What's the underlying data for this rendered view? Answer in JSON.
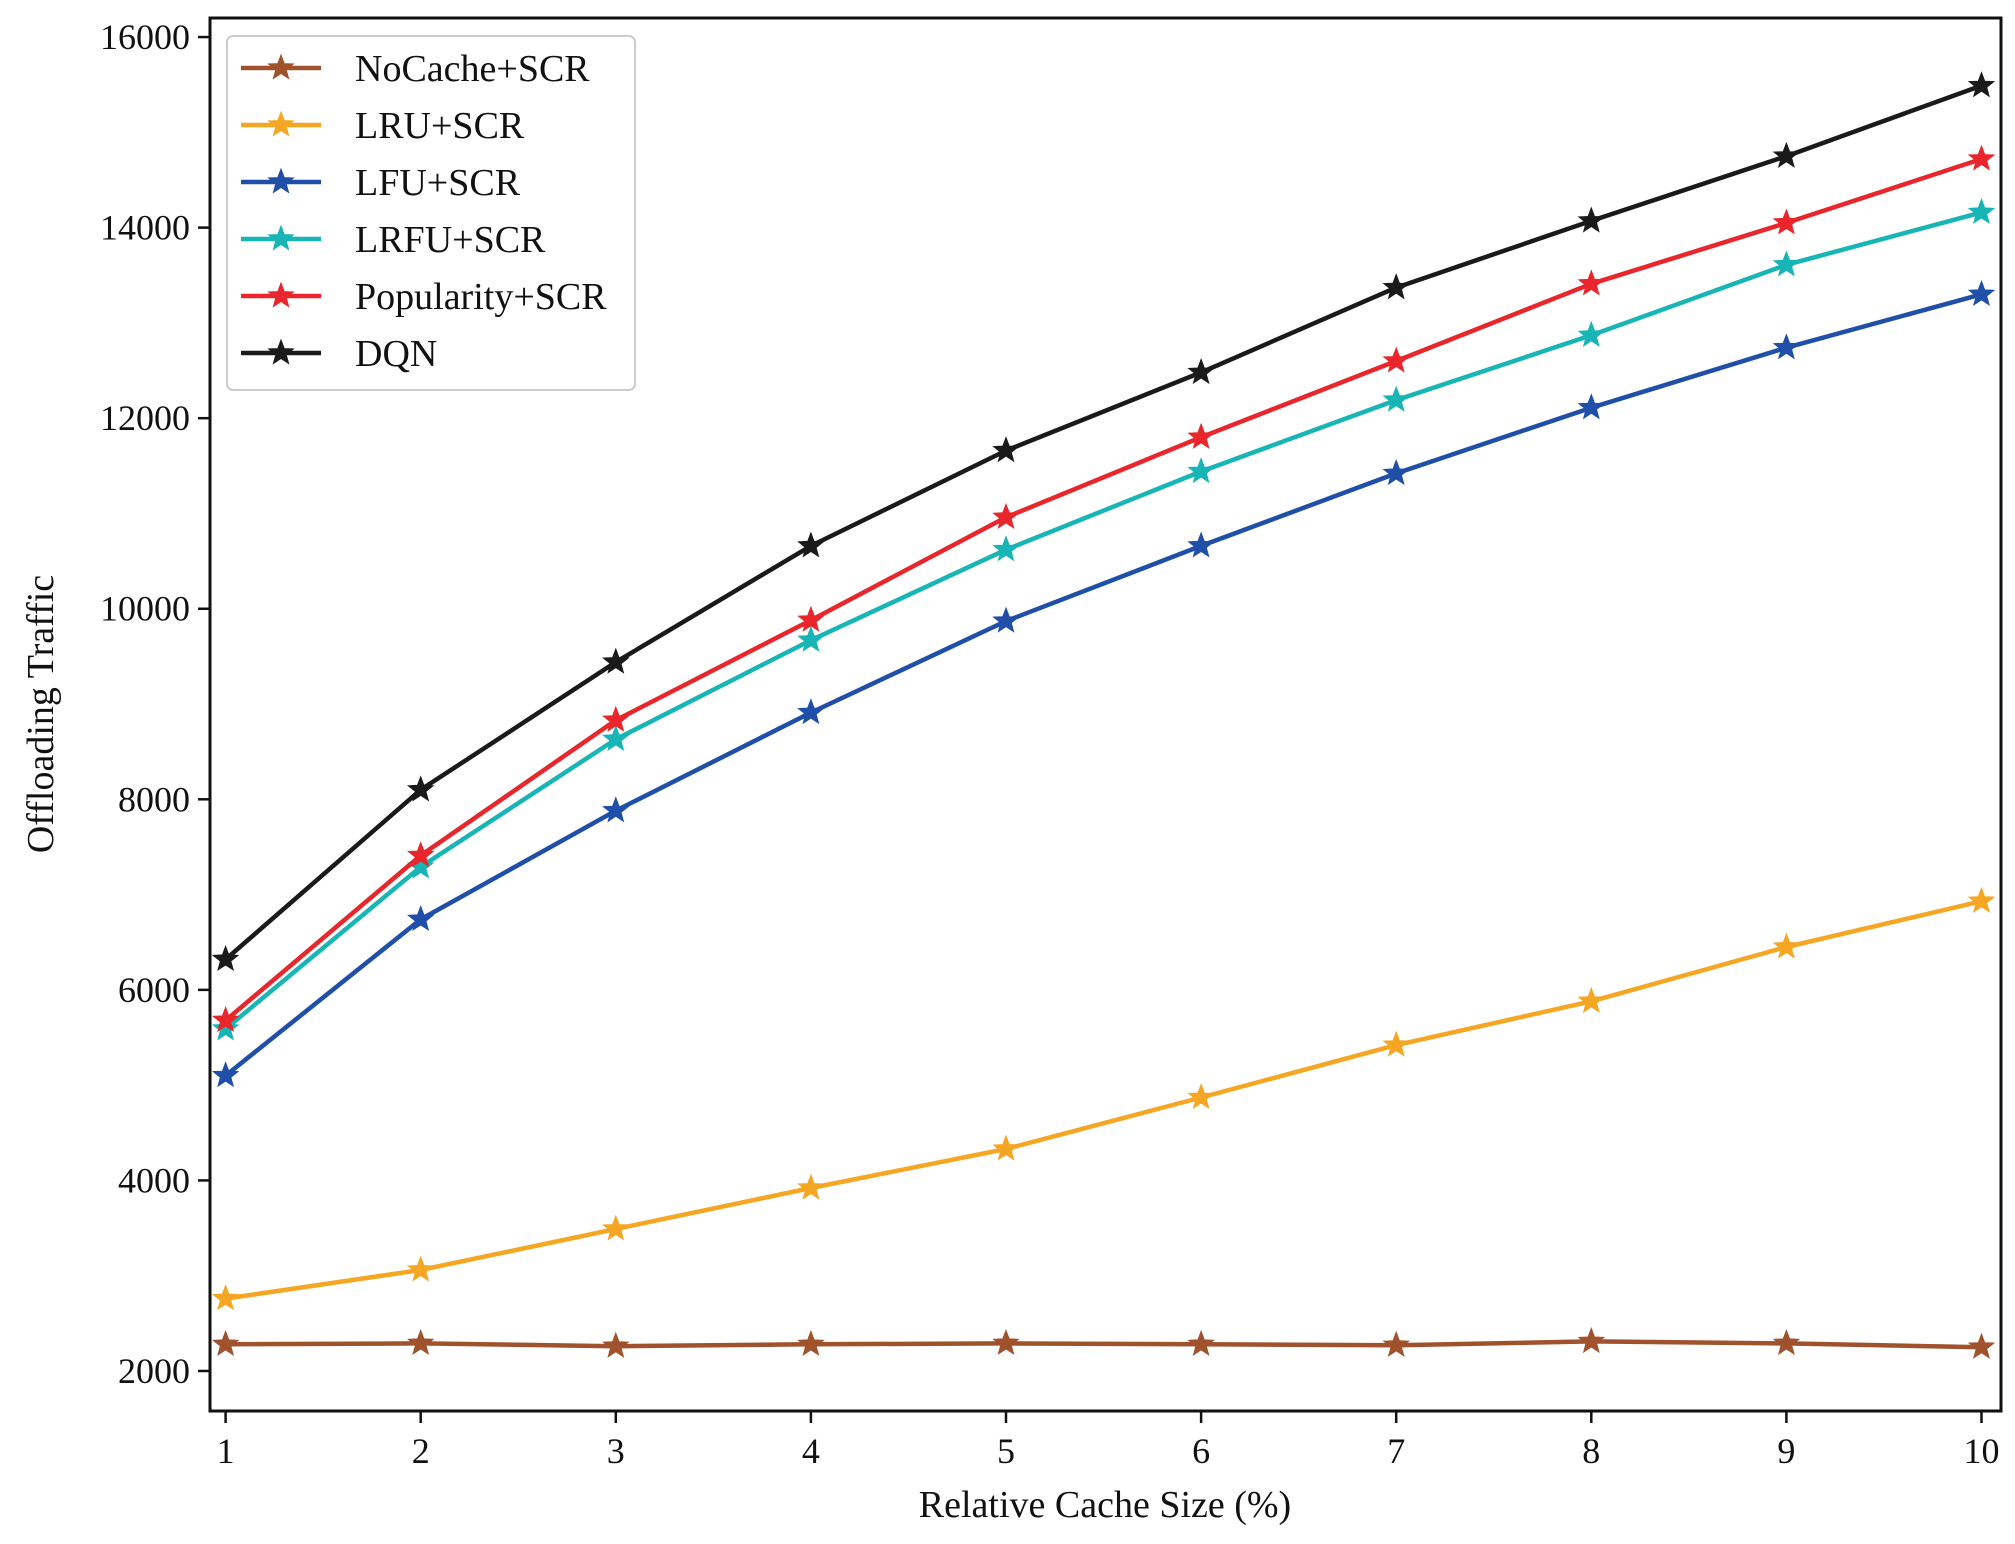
{
  "chart_data": {
    "type": "line",
    "title": "",
    "xlabel": "Relative Cache Size (%)",
    "ylabel": "Offloading Traffic",
    "x": [
      1,
      2,
      3,
      4,
      5,
      6,
      7,
      8,
      9,
      10
    ],
    "xticks": [
      "1",
      "2",
      "3",
      "4",
      "5",
      "6",
      "7",
      "8",
      "9",
      "10"
    ],
    "yticks": [
      "2000",
      "4000",
      "6000",
      "8000",
      "10000",
      "12000",
      "14000",
      "16000"
    ],
    "ytick_values": [
      2000,
      4000,
      6000,
      8000,
      10000,
      12000,
      14000,
      16000
    ],
    "xlim": [
      0.92,
      10.1
    ],
    "ylim": [
      1580,
      16200
    ],
    "grid": false,
    "legend_position": "top-left",
    "marker": "star",
    "series": [
      {
        "name": "NoCache+SCR",
        "color": "#a0522d",
        "values": [
          2280,
          2290,
          2260,
          2280,
          2290,
          2280,
          2270,
          2310,
          2290,
          2250
        ]
      },
      {
        "name": "LRU+SCR",
        "color": "#f5a623",
        "values": [
          2760,
          3060,
          3490,
          3920,
          4330,
          4870,
          5420,
          5880,
          6450,
          6930
        ]
      },
      {
        "name": "LFU+SCR",
        "color": "#1f4fa8",
        "values": [
          5100,
          6740,
          7880,
          8910,
          9870,
          10660,
          11420,
          12110,
          12740,
          13300
        ]
      },
      {
        "name": "LRFU+SCR",
        "color": "#17b5b5",
        "values": [
          5590,
          7290,
          8630,
          9670,
          10620,
          11440,
          12190,
          12870,
          13610,
          14160
        ]
      },
      {
        "name": "Popularity+SCR",
        "color": "#e8262b",
        "values": [
          5680,
          7410,
          8830,
          9880,
          10960,
          11800,
          12600,
          13410,
          14050,
          14720
        ]
      },
      {
        "name": "DQN",
        "color": "#1a1a1a",
        "values": [
          6320,
          8100,
          9440,
          10660,
          11660,
          12480,
          13370,
          14070,
          14750,
          15490
        ]
      }
    ]
  }
}
